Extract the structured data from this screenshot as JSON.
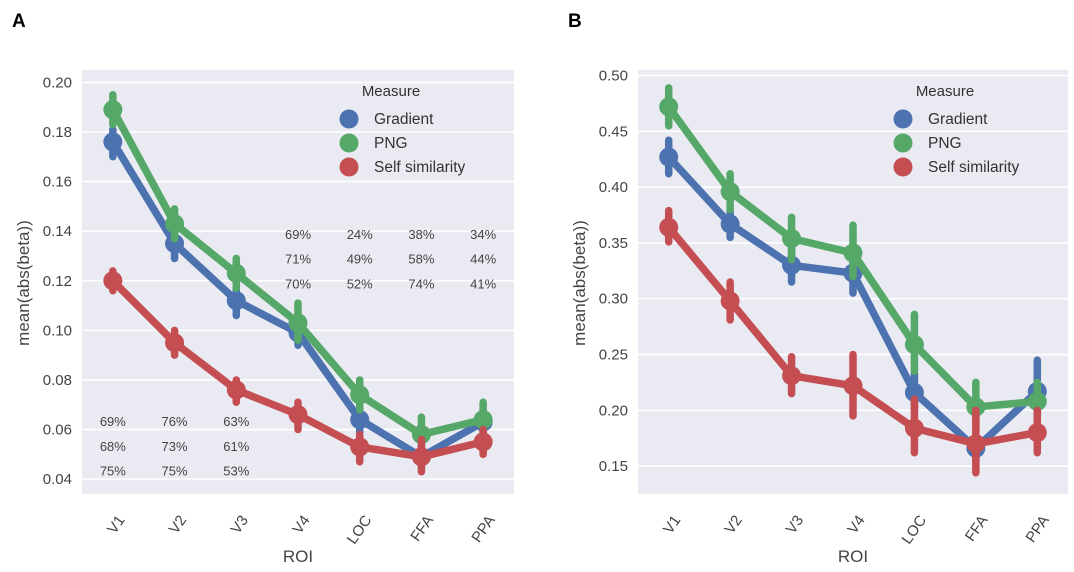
{
  "chart_data": [
    {
      "panel": "A",
      "type": "line",
      "categories": [
        "V1",
        "V2",
        "V3",
        "V4",
        "LOC",
        "FFA",
        "PPA"
      ],
      "xlabel": "ROI",
      "ylabel": "mean(abs(beta))",
      "ylim": [
        0.034,
        0.205
      ],
      "yticks": [
        "0.04",
        "0.06",
        "0.08",
        "0.10",
        "0.12",
        "0.14",
        "0.16",
        "0.18",
        "0.20"
      ],
      "grid": true,
      "legend_title": "Measure",
      "legend_position": "top-right",
      "series": [
        {
          "name": "Gradient",
          "color": "#4c72b0",
          "values": [
            0.176,
            0.135,
            0.112,
            0.099,
            0.064,
            0.049,
            0.063
          ],
          "err": [
            [
              0.17,
              0.181
            ],
            [
              0.129,
              0.14
            ],
            [
              0.106,
              0.117
            ],
            [
              0.094,
              0.105
            ],
            [
              0.059,
              0.068
            ],
            [
              0.045,
              0.053
            ],
            [
              0.059,
              0.068
            ]
          ]
        },
        {
          "name": "PNG",
          "color": "#55a868",
          "values": [
            0.189,
            0.143,
            0.123,
            0.103,
            0.074,
            0.058,
            0.064
          ],
          "err": [
            [
              0.183,
              0.195
            ],
            [
              0.137,
              0.149
            ],
            [
              0.117,
              0.129
            ],
            [
              0.096,
              0.111
            ],
            [
              0.068,
              0.08
            ],
            [
              0.051,
              0.065
            ],
            [
              0.058,
              0.071
            ]
          ]
        },
        {
          "name": "Self similarity",
          "color": "#c44e52",
          "values": [
            0.12,
            0.095,
            0.076,
            0.066,
            0.053,
            0.049,
            0.055
          ],
          "err": [
            [
              0.116,
              0.124
            ],
            [
              0.09,
              0.1
            ],
            [
              0.071,
              0.08
            ],
            [
              0.06,
              0.071
            ],
            [
              0.047,
              0.058
            ],
            [
              0.043,
              0.056
            ],
            [
              0.05,
              0.06
            ]
          ]
        }
      ],
      "annotations": [
        {
          "x_index": 0,
          "rows": [
            "69%",
            "68%",
            "75%"
          ],
          "y": [
            0.063,
            0.053,
            0.043
          ]
        },
        {
          "x_index": 1,
          "rows": [
            "76%",
            "73%",
            "75%"
          ],
          "y": [
            0.063,
            0.053,
            0.043
          ]
        },
        {
          "x_index": 2,
          "rows": [
            "63%",
            "61%",
            "53%"
          ],
          "y": [
            0.063,
            0.053,
            0.043
          ]
        },
        {
          "x_index": 3,
          "rows": [
            "69%",
            "71%",
            "70%"
          ],
          "y": [
            0.1385,
            0.1285,
            0.1185
          ]
        },
        {
          "x_index": 4,
          "rows": [
            "24%",
            "49%",
            "52%"
          ],
          "y": [
            0.1385,
            0.1285,
            0.1185
          ]
        },
        {
          "x_index": 5,
          "rows": [
            "38%",
            "58%",
            "74%"
          ],
          "y": [
            0.1385,
            0.1285,
            0.1185
          ]
        },
        {
          "x_index": 6,
          "rows": [
            "34%",
            "44%",
            "41%"
          ],
          "y": [
            0.1385,
            0.1285,
            0.1185
          ]
        }
      ]
    },
    {
      "panel": "B",
      "type": "line",
      "categories": [
        "V1",
        "V2",
        "V3",
        "V4",
        "LOC",
        "FFA",
        "PPA"
      ],
      "xlabel": "ROI",
      "ylabel": "mean(abs(beta))",
      "ylim": [
        0.125,
        0.505
      ],
      "yticks": [
        "0.15",
        "0.20",
        "0.25",
        "0.30",
        "0.35",
        "0.40",
        "0.45",
        "0.50"
      ],
      "grid": true,
      "legend_title": "Measure",
      "legend_position": "top-right",
      "series": [
        {
          "name": "Gradient",
          "color": "#4c72b0",
          "values": [
            0.427,
            0.367,
            0.33,
            0.323,
            0.216,
            0.166,
            0.217
          ],
          "err": [
            [
              0.412,
              0.442
            ],
            [
              0.355,
              0.379
            ],
            [
              0.315,
              0.345
            ],
            [
              0.305,
              0.34
            ],
            [
              0.2,
              0.233
            ],
            [
              0.155,
              0.178
            ],
            [
              0.195,
              0.245
            ]
          ]
        },
        {
          "name": "PNG",
          "color": "#55a868",
          "values": [
            0.472,
            0.396,
            0.354,
            0.341,
            0.259,
            0.203,
            0.208
          ],
          "err": [
            [
              0.455,
              0.489
            ],
            [
              0.38,
              0.412
            ],
            [
              0.335,
              0.373
            ],
            [
              0.32,
              0.366
            ],
            [
              0.235,
              0.286
            ],
            [
              0.185,
              0.225
            ],
            [
              0.195,
              0.225
            ]
          ]
        },
        {
          "name": "Self similarity",
          "color": "#c44e52",
          "values": [
            0.364,
            0.298,
            0.231,
            0.222,
            0.184,
            0.17,
            0.18
          ],
          "err": [
            [
              0.351,
              0.379
            ],
            [
              0.281,
              0.315
            ],
            [
              0.215,
              0.248
            ],
            [
              0.195,
              0.25
            ],
            [
              0.162,
              0.21
            ],
            [
              0.144,
              0.2
            ],
            [
              0.162,
              0.2
            ]
          ]
        }
      ],
      "annotations": []
    }
  ]
}
